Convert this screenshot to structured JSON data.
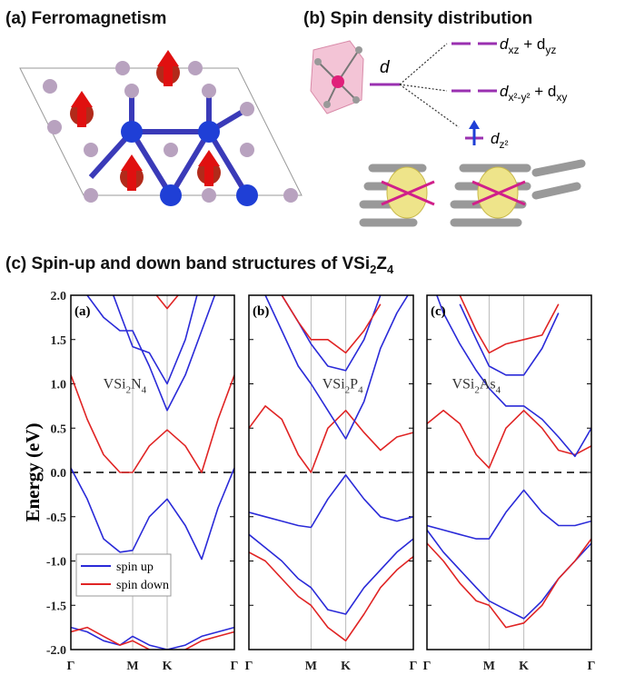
{
  "figure": {
    "panel_a_title": "(a) Ferromagnetism",
    "panel_b_title": "(b) Spin density distribution",
    "level_label": "d",
    "orbitals": [
      [
        "d",
        "xz",
        " + d",
        "yz"
      ],
      [
        "d",
        "x²-y²",
        " + d",
        "xy"
      ],
      [
        "d",
        "z²"
      ]
    ],
    "panel_c_title": [
      "(c) Spin-up and down band structures of VSi",
      "2",
      "Z",
      "4"
    ]
  },
  "chart_data": [
    {
      "type": "line",
      "panel_label": "(a)",
      "annotation": [
        "VSi",
        "2",
        "N",
        "4"
      ],
      "ylabel": "Energy (eV)",
      "x": [
        0,
        0.1,
        0.2,
        0.3,
        0.378,
        0.48,
        0.589,
        0.7,
        0.8,
        0.9,
        1
      ],
      "xlim": [
        0,
        1
      ],
      "xticks": [
        {
          "value": 0,
          "label": "Γ"
        },
        {
          "value": 0.378,
          "label": "M"
        },
        {
          "value": 0.589,
          "label": "K"
        },
        {
          "value": 1,
          "label": "Γ"
        }
      ],
      "ylim": [
        -2,
        2
      ],
      "yticks": [
        {
          "value": -2,
          "label": "-2.0"
        },
        {
          "value": -1.5,
          "label": "-1.5"
        },
        {
          "value": -1,
          "label": "-1.0"
        },
        {
          "value": -0.5,
          "label": "-0.5"
        },
        {
          "value": 0,
          "label": "0.0"
        },
        {
          "value": 0.5,
          "label": "0.5"
        },
        {
          "value": 1,
          "label": "1.0"
        },
        {
          "value": 1.5,
          "label": "1.5"
        },
        {
          "value": 2,
          "label": "2.0"
        }
      ],
      "hline": 0,
      "legend": "lower left",
      "series": [
        {
          "name": "spin up",
          "color": "#2a2ad8",
          "values": [
            0.05,
            -0.3,
            -0.75,
            -0.9,
            -0.88,
            -0.5,
            -0.3,
            -0.6,
            -0.98,
            -0.4,
            0.05
          ]
        },
        {
          "name": "spin down",
          "color": "#e02424",
          "values": [
            1.1,
            0.6,
            0.2,
            0.0,
            0.0,
            0.3,
            0.48,
            0.3,
            0.0,
            0.6,
            1.1
          ]
        },
        {
          "color": "#2a2ad8",
          "values": [
            2.6,
            2.0,
            1.75,
            1.6,
            1.6,
            1.2,
            0.7,
            1.1,
            1.6,
            2.1,
            2.6
          ]
        },
        {
          "color": "#2a2ad8",
          "values": [
            null,
            null,
            2.3,
            1.8,
            1.42,
            1.35,
            1.0,
            1.5,
            2.2,
            null,
            null
          ]
        },
        {
          "color": "#e02424",
          "values": [
            null,
            null,
            null,
            null,
            null,
            2.1,
            1.85,
            2.1,
            null,
            null,
            null
          ]
        },
        {
          "color": "#2a2ad8",
          "values": [
            -1.75,
            -1.8,
            -1.9,
            -1.95,
            -1.85,
            -1.95,
            -2.0,
            -1.95,
            -1.85,
            -1.8,
            -1.75
          ]
        },
        {
          "color": "#e02424",
          "values": [
            -1.8,
            -1.75,
            -1.85,
            -1.95,
            -1.9,
            -2.0,
            -2.1,
            -2.0,
            -1.9,
            -1.85,
            -1.8
          ]
        }
      ]
    },
    {
      "type": "line",
      "panel_label": "(b)",
      "annotation": [
        "VSi",
        "2",
        "P",
        "4"
      ],
      "x": [
        0,
        0.1,
        0.2,
        0.3,
        0.378,
        0.48,
        0.589,
        0.7,
        0.8,
        0.9,
        1
      ],
      "xlim": [
        0,
        1
      ],
      "xticks": [
        {
          "value": 0,
          "label": "Γ"
        },
        {
          "value": 0.378,
          "label": "M"
        },
        {
          "value": 0.589,
          "label": "K"
        },
        {
          "value": 1,
          "label": "Γ"
        }
      ],
      "ylim": [
        -2,
        2
      ],
      "yticks": [
        -2,
        -1.5,
        -1,
        -0.5,
        0,
        0.5,
        1,
        1.5,
        2
      ],
      "hline": 0,
      "series": [
        {
          "color": "#2a2ad8",
          "values": [
            -0.45,
            -0.5,
            -0.55,
            -0.6,
            -0.62,
            -0.3,
            -0.03,
            -0.3,
            -0.5,
            -0.55,
            -0.5
          ]
        },
        {
          "color": "#e02424",
          "values": [
            0.5,
            0.75,
            0.6,
            0.2,
            0.0,
            0.5,
            0.7,
            0.45,
            0.25,
            0.4,
            0.45
          ]
        },
        {
          "color": "#2a2ad8",
          "values": [
            2.5,
            2.0,
            1.6,
            1.2,
            1.0,
            0.7,
            0.38,
            0.8,
            1.4,
            1.8,
            2.1
          ]
        },
        {
          "color": "#2a2ad8",
          "values": [
            null,
            null,
            2.0,
            1.7,
            1.45,
            1.2,
            1.15,
            1.5,
            2.0,
            null,
            null
          ]
        },
        {
          "color": "#e02424",
          "values": [
            null,
            null,
            2.0,
            1.7,
            1.5,
            1.5,
            1.35,
            1.6,
            1.9,
            null,
            null
          ]
        },
        {
          "color": "#2a2ad8",
          "values": [
            -0.7,
            -0.85,
            -1.0,
            -1.2,
            -1.3,
            -1.55,
            -1.6,
            -1.3,
            -1.1,
            -0.9,
            -0.75
          ]
        },
        {
          "color": "#e02424",
          "values": [
            -0.9,
            -1.0,
            -1.2,
            -1.4,
            -1.5,
            -1.75,
            -1.9,
            -1.6,
            -1.3,
            -1.1,
            -0.95
          ]
        }
      ]
    },
    {
      "type": "line",
      "panel_label": "(c)",
      "annotation": [
        "VSi",
        "2",
        "As",
        "4"
      ],
      "x": [
        0,
        0.1,
        0.2,
        0.3,
        0.378,
        0.48,
        0.589,
        0.7,
        0.8,
        0.9,
        1
      ],
      "xlim": [
        0,
        1
      ],
      "xticks": [
        {
          "value": 0,
          "label": "Γ"
        },
        {
          "value": 0.378,
          "label": "M"
        },
        {
          "value": 0.589,
          "label": "K"
        },
        {
          "value": 1,
          "label": "Γ"
        }
      ],
      "ylim": [
        -2,
        2
      ],
      "yticks": [
        -2,
        -1.5,
        -1,
        -0.5,
        0,
        0.5,
        1,
        1.5,
        2
      ],
      "hline": 0,
      "series": [
        {
          "color": "#2a2ad8",
          "values": [
            -0.6,
            -0.65,
            -0.7,
            -0.75,
            -0.75,
            -0.45,
            -0.2,
            -0.45,
            -0.6,
            -0.6,
            -0.55
          ]
        },
        {
          "color": "#e02424",
          "values": [
            0.55,
            0.7,
            0.55,
            0.2,
            0.05,
            0.5,
            0.7,
            0.5,
            0.25,
            0.2,
            0.3
          ]
        },
        {
          "color": "#2a2ad8",
          "values": [
            2.3,
            1.8,
            1.45,
            1.15,
            0.95,
            0.75,
            0.75,
            0.6,
            0.4,
            0.18,
            0.5
          ]
        },
        {
          "color": "#2a2ad8",
          "values": [
            null,
            null,
            1.9,
            1.5,
            1.2,
            1.1,
            1.1,
            1.4,
            1.8,
            null,
            null
          ]
        },
        {
          "color": "#e02424",
          "values": [
            null,
            null,
            2.0,
            1.6,
            1.35,
            1.45,
            1.5,
            1.55,
            1.9,
            null,
            null
          ]
        },
        {
          "color": "#2a2ad8",
          "values": [
            -0.65,
            -0.9,
            -1.1,
            -1.3,
            -1.45,
            -1.55,
            -1.65,
            -1.45,
            -1.2,
            -1.0,
            -0.8
          ]
        },
        {
          "color": "#e02424",
          "values": [
            -0.8,
            -1.0,
            -1.25,
            -1.45,
            -1.5,
            -1.75,
            -1.7,
            -1.5,
            -1.2,
            -1.0,
            -0.75
          ]
        }
      ]
    }
  ]
}
